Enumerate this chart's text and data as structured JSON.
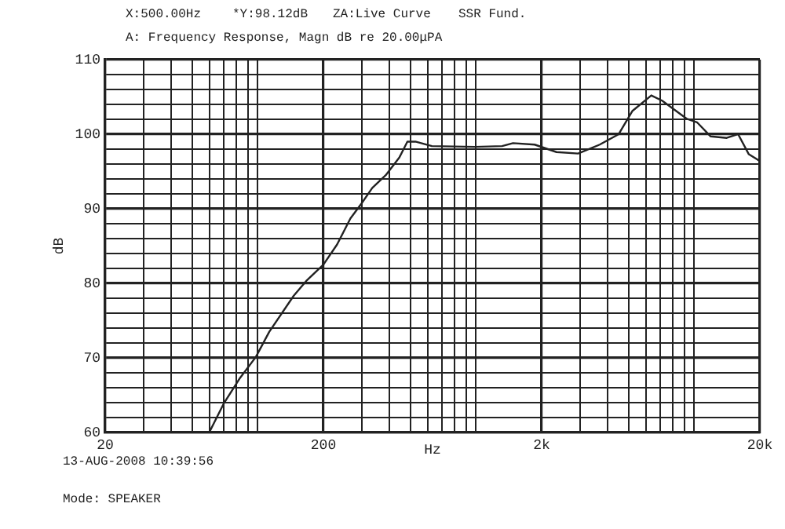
{
  "chart_data": {
    "type": "line",
    "title": "A: Frequency Response, Magn dB re 20.00μPA",
    "xlabel": "Hz",
    "ylabel": "dB",
    "annotations": [
      "X:500.00Hz",
      "*Y:98.12dB",
      "ZA:Live Curve",
      "SSR Fund.",
      "13-AUG-2008 10:39:56",
      "Mode: SPEAKER"
    ],
    "log": "x",
    "grid": true,
    "marker": "none",
    "line_style": "solid",
    "legend": false,
    "xlim": [
      20,
      20000
    ],
    "ylim": [
      60,
      110
    ],
    "xticks": [
      20,
      {
        "value": 30,
        "label": null
      },
      {
        "value": 40,
        "label": null
      },
      {
        "value": 50,
        "label": null
      },
      {
        "value": 60,
        "label": null
      },
      {
        "value": 70,
        "label": null
      },
      {
        "value": 80,
        "label": null
      },
      {
        "value": 90,
        "label": null
      },
      {
        "value": 100,
        "label": null
      },
      200,
      {
        "value": 300,
        "label": null
      },
      {
        "value": 400,
        "label": null
      },
      {
        "value": 500,
        "label": null
      },
      {
        "value": 600,
        "label": null
      },
      {
        "value": 700,
        "label": null
      },
      {
        "value": 800,
        "label": null
      },
      {
        "value": 900,
        "label": null
      },
      {
        "value": 1000,
        "label": null
      },
      {
        "value": 2000,
        "label": "2k"
      },
      {
        "value": 3000,
        "label": null
      },
      {
        "value": 4000,
        "label": null
      },
      {
        "value": 5000,
        "label": null
      },
      {
        "value": 6000,
        "label": null
      },
      {
        "value": 7000,
        "label": null
      },
      {
        "value": 8000,
        "label": null
      },
      {
        "value": 9000,
        "label": null
      },
      {
        "value": 10000,
        "label": null
      },
      {
        "value": 20000,
        "label": "20k"
      }
    ],
    "yticks": [
      60,
      {
        "value": 62,
        "label": null
      },
      {
        "value": 64,
        "label": null
      },
      {
        "value": 66,
        "label": null
      },
      {
        "value": 68,
        "label": null
      },
      70,
      {
        "value": 72,
        "label": null
      },
      {
        "value": 74,
        "label": null
      },
      {
        "value": 76,
        "label": null
      },
      {
        "value": 78,
        "label": null
      },
      80,
      {
        "value": 82,
        "label": null
      },
      {
        "value": 84,
        "label": null
      },
      {
        "value": 86,
        "label": null
      },
      {
        "value": 88,
        "label": null
      },
      90,
      {
        "value": 92,
        "label": null
      },
      {
        "value": 94,
        "label": null
      },
      {
        "value": 96,
        "label": null
      },
      {
        "value": 98,
        "label": null
      },
      100,
      {
        "value": 102,
        "label": null
      },
      {
        "value": 104,
        "label": null
      },
      {
        "value": 106,
        "label": null
      },
      {
        "value": 108,
        "label": null
      },
      110
    ],
    "series": [
      {
        "color": "#222222",
        "x": [
          60,
          70,
          83,
          98,
          113,
          146,
          168,
          200,
          231,
          266,
          299,
          335,
          386,
          446,
          485,
          528,
          628,
          991,
          1318,
          1478,
          1858,
          2339,
          2937,
          3690,
          4509,
          5204,
          6359,
          7128,
          9213,
          10300,
          11900,
          14100,
          15900,
          17800,
          20000
        ],
        "values": [
          60,
          63.9,
          67.3,
          70.1,
          73.5,
          78.3,
          80.4,
          82.5,
          85.2,
          88.7,
          90.7,
          92.8,
          94.5,
          96.9,
          99,
          99,
          98.4,
          98.3,
          98.4,
          98.8,
          98.6,
          97.6,
          97.4,
          98.6,
          100,
          103.1,
          105.2,
          104.5,
          102.1,
          101.6,
          99.7,
          99.5,
          100,
          97.3,
          96.4
        ]
      }
    ]
  }
}
